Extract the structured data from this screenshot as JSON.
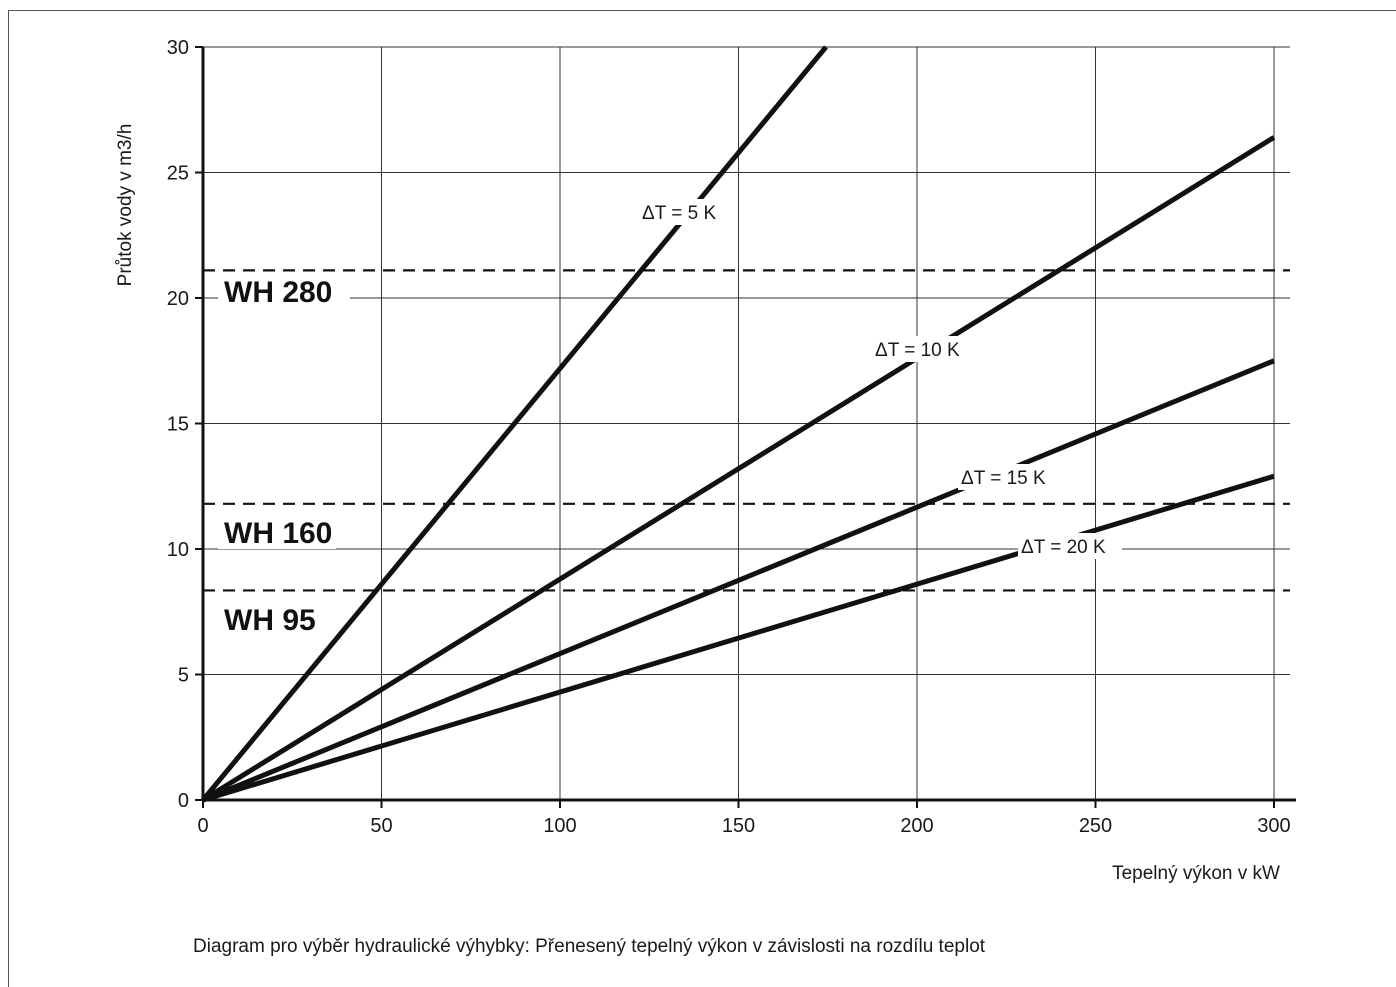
{
  "caption": "Diagram pro výběr hydraulické výhybky: Přenesený tepelný výkon v závislosti na rozdílu teplot",
  "chart_data": {
    "type": "line",
    "title": "",
    "xlabel": "Tepelný výkon v kW",
    "ylabel": "Průtok vody v m3/h",
    "xlim": [
      0,
      300
    ],
    "ylim": [
      0,
      30
    ],
    "xticks": [
      0,
      50,
      100,
      150,
      200,
      250,
      300
    ],
    "yticks": [
      0,
      5,
      10,
      15,
      20,
      25,
      30
    ],
    "grid": true,
    "series": [
      {
        "name": "ΔT = 5 K",
        "x": [
          0,
          174.5
        ],
        "y": [
          0,
          30.0
        ]
      },
      {
        "name": "ΔT = 10 K",
        "x": [
          0,
          300
        ],
        "y": [
          0,
          26.4
        ]
      },
      {
        "name": "ΔT = 15 K",
        "x": [
          0,
          300
        ],
        "y": [
          0,
          17.5
        ]
      },
      {
        "name": "ΔT = 20 K",
        "x": [
          0,
          300
        ],
        "y": [
          0,
          12.9
        ]
      }
    ],
    "reference_lines": [
      {
        "label": "WH 280",
        "y": 21.1
      },
      {
        "label": "WH 160",
        "y": 11.8
      },
      {
        "label": "WH 95",
        "y": 8.35
      }
    ]
  }
}
